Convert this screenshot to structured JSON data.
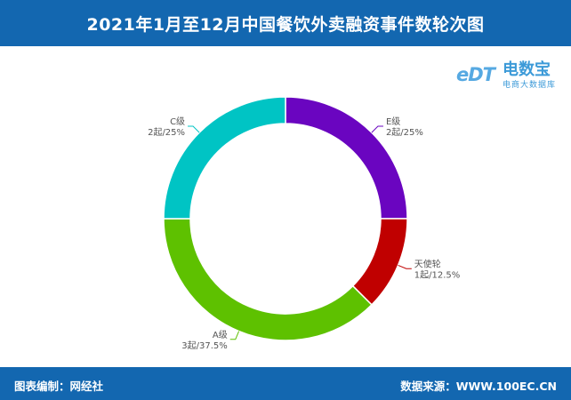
{
  "header": {
    "title": "2021年1月至12月中国餐饮外卖融资事件数轮次图"
  },
  "logo": {
    "mark": "eDT",
    "brand": "电数宝",
    "sub": "电商大数据库"
  },
  "footer": {
    "left": "图表编制：网经社",
    "right": "数据来源：WWW.100EC.CN"
  },
  "chart_data": {
    "type": "pie",
    "title": "2021年1月至12月中国餐饮外卖融资事件数轮次图",
    "series": [
      {
        "name": "E级",
        "value": 2,
        "label": "2起/25%",
        "color": "#6a05c0"
      },
      {
        "name": "天使轮",
        "value": 1,
        "label": "1起/12.5%",
        "color": "#c00000"
      },
      {
        "name": "A级",
        "value": 3,
        "label": "3起/37.5%",
        "color": "#5ec100"
      },
      {
        "name": "C级",
        "value": 2,
        "label": "2起/25%",
        "color": "#00c4c4"
      }
    ]
  }
}
